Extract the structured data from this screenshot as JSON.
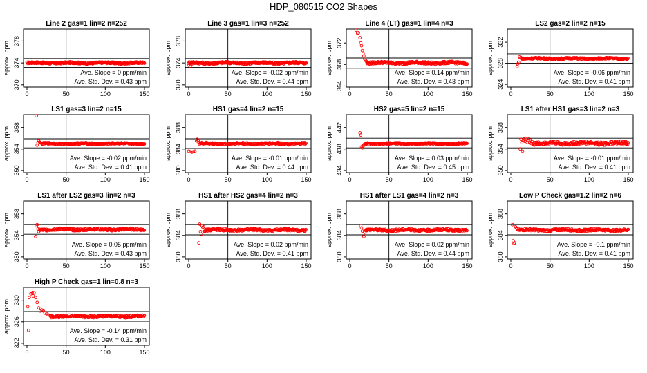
{
  "figure_title": "HDP_080515  CO2 Shapes",
  "chart_data": [
    {
      "type": "scatter",
      "title": "Line 2 gas=1 lin=2 n=252",
      "ylabel": "approx. ppm",
      "xlim": [
        0,
        150
      ],
      "xticks": [
        0,
        50,
        100,
        150
      ],
      "ylim": [
        369.6,
        380.2
      ],
      "yticks": [
        370,
        374,
        378
      ],
      "hlines": [
        373.2,
        374.8
      ],
      "vline": 50,
      "slope_label": "Ave. Slope = ",
      "slope": "0",
      "slope_unit": "ppm/min",
      "sd_label": "Ave. Std. Dev. = ",
      "sd": "0.43",
      "sd_unit": "ppm",
      "shape": {
        "base": 374,
        "start": 0,
        "noise": 0.15
      }
    },
    {
      "type": "scatter",
      "title": "Line 3 gas=1 lin=3 n=252",
      "ylabel": "approx. ppm",
      "xlim": [
        0,
        150
      ],
      "xticks": [
        0,
        50,
        100,
        150
      ],
      "ylim": [
        369.6,
        380.2
      ],
      "yticks": [
        370,
        374,
        378
      ],
      "hlines": [
        373.2,
        374.8
      ],
      "vline": 50,
      "slope_label": "Ave. Slope = ",
      "slope": "-0.02",
      "slope_unit": "ppm/min",
      "sd_label": "Ave. Std. Dev. = ",
      "sd": "0.44",
      "sd_unit": "ppm",
      "shape": {
        "base": 374,
        "start": 0,
        "noise": 0.18,
        "initial": [
          [
            0,
            373.6
          ],
          [
            2,
            373.4
          ],
          [
            4,
            373.8
          ],
          [
            6,
            374.2
          ]
        ]
      }
    },
    {
      "type": "scatter",
      "title": "Line 4 (LT) gas=1 lin=4 n=3",
      "ylabel": "approx. ppm",
      "xlim": [
        0,
        150
      ],
      "xticks": [
        0,
        50,
        100,
        150
      ],
      "ylim": [
        363.8,
        374.6
      ],
      "yticks": [
        364,
        368,
        372
      ],
      "hlines": [
        367.3,
        369.2
      ],
      "vline": 50,
      "slope_label": "Ave. Slope = ",
      "slope": "0.14",
      "slope_unit": "ppm/min",
      "sd_label": "Ave. Std. Dev. = ",
      "sd": "0.43",
      "sd_unit": "ppm",
      "shape": {
        "base": 368.3,
        "start": 22,
        "noise": 0.2,
        "initial": [
          [
            8,
            374.4
          ],
          [
            10,
            373.8
          ],
          [
            11,
            373.9
          ],
          [
            13,
            373.0
          ],
          [
            14,
            372.0
          ],
          [
            15,
            371.5
          ],
          [
            16,
            370.6
          ],
          [
            17,
            370.0
          ],
          [
            18,
            369.6
          ],
          [
            19,
            369.0
          ],
          [
            20,
            368.8
          ],
          [
            21,
            368.6
          ]
        ]
      }
    },
    {
      "type": "scatter",
      "title": "LS2 gas=2 lin=2 n=15",
      "ylabel": "approx. ppm",
      "xlim": [
        0,
        150
      ],
      "xticks": [
        0,
        50,
        100,
        150
      ],
      "ylim": [
        323.5,
        334.5
      ],
      "yticks": [
        324,
        328,
        332
      ],
      "hlines": [
        328.0,
        329.8
      ],
      "vline": 50,
      "slope_label": "Ave. Slope = ",
      "slope": "-0.06",
      "slope_unit": "ppm/min",
      "sd_label": "Ave. Std. Dev. = ",
      "sd": "0.41",
      "sd_unit": "ppm",
      "shape": {
        "base": 328.9,
        "start": 14,
        "noise": 0.15,
        "initial": [
          [
            8,
            327.4
          ],
          [
            9,
            327.9
          ],
          [
            10,
            328.2
          ],
          [
            11,
            329.2
          ],
          [
            12,
            329.0
          ],
          [
            13,
            329.1
          ]
        ]
      }
    },
    {
      "type": "scatter",
      "title": "LS1 gas=3 lin=2 n=15",
      "ylabel": "approx. ppm",
      "xlim": [
        0,
        150
      ],
      "xticks": [
        0,
        50,
        100,
        150
      ],
      "ylim": [
        349.6,
        360.4
      ],
      "yticks": [
        350,
        354,
        358
      ],
      "hlines": [
        354.2,
        355.9
      ],
      "vline": 50,
      "slope_label": "Ave. Slope = ",
      "slope": "-0.02",
      "slope_unit": "ppm/min",
      "sd_label": "Ave. Std. Dev. = ",
      "sd": "0.41",
      "sd_unit": "ppm",
      "shape": {
        "base": 355.0,
        "start": 18,
        "noise": 0.15,
        "initial": [
          [
            12,
            360.2
          ],
          [
            13,
            354.7
          ],
          [
            14,
            355.2
          ],
          [
            15,
            355.6
          ],
          [
            16,
            355.3
          ],
          [
            17,
            355.2
          ]
        ]
      }
    },
    {
      "type": "scatter",
      "title": "HS1 gas=4 lin=2 n=15",
      "ylabel": "approx. ppm",
      "xlim": [
        0,
        150
      ],
      "xticks": [
        0,
        50,
        100,
        150
      ],
      "ylim": [
        379.6,
        390.4
      ],
      "yticks": [
        380,
        384,
        388
      ],
      "hlines": [
        384.1,
        385.9
      ],
      "vline": 50,
      "slope_label": "Ave. Slope = ",
      "slope": "-0.01",
      "slope_unit": "ppm/min",
      "sd_label": "Ave. Std. Dev. = ",
      "sd": "0.44",
      "sd_unit": "ppm",
      "shape": {
        "base": 385.0,
        "start": 14,
        "noise": 0.18,
        "initial": [
          [
            0,
            383.6
          ],
          [
            2,
            383.5
          ],
          [
            4,
            383.4
          ],
          [
            6,
            383.5
          ],
          [
            8,
            383.6
          ],
          [
            10,
            385.5
          ],
          [
            11,
            385.8
          ],
          [
            12,
            385.6
          ],
          [
            13,
            385.2
          ]
        ]
      }
    },
    {
      "type": "scatter",
      "title": "HS2 gas=5 lin=2 n=15",
      "ylabel": "approx. ppm",
      "xlim": [
        0,
        150
      ],
      "xticks": [
        0,
        50,
        100,
        150
      ],
      "ylim": [
        433.6,
        444.4
      ],
      "yticks": [
        434,
        438,
        442
      ],
      "hlines": [
        438.2,
        440.0
      ],
      "vline": 50,
      "slope_label": "Ave. Slope = ",
      "slope": "0.03",
      "slope_unit": "ppm/min",
      "sd_label": "Ave. Std. Dev. = ",
      "sd": "0.45",
      "sd_unit": "ppm",
      "shape": {
        "base": 439.0,
        "start": 20,
        "noise": 0.15,
        "initial": [
          [
            13,
            441.0
          ],
          [
            14,
            440.6
          ],
          [
            15,
            438.4
          ],
          [
            16,
            438.2
          ],
          [
            17,
            438.5
          ],
          [
            18,
            438.8
          ],
          [
            19,
            438.9
          ]
        ]
      }
    },
    {
      "type": "scatter",
      "title": "LS1 after HS1 gas=3 lin=2 n=3",
      "ylabel": "approx. ppm",
      "xlim": [
        0,
        150
      ],
      "xticks": [
        0,
        50,
        100,
        150
      ],
      "ylim": [
        349.6,
        360.4
      ],
      "yticks": [
        350,
        354,
        358
      ],
      "hlines": [
        354.2,
        356.0
      ],
      "vline": 50,
      "slope_label": "Ave. Slope = ",
      "slope": "-0.01",
      "slope_unit": "ppm/min",
      "sd_label": "Ave. Std. Dev. = ",
      "sd": "0.41",
      "sd_unit": "ppm",
      "shape": {
        "base": 355.1,
        "start": 28,
        "noise": 0.3,
        "initial": [
          [
            12,
            354.0
          ],
          [
            13,
            355.8
          ],
          [
            14,
            355.2
          ],
          [
            15,
            353.6
          ],
          [
            16,
            355.6
          ],
          [
            17,
            355.9
          ],
          [
            18,
            355.4
          ],
          [
            19,
            356.0
          ],
          [
            20,
            355.8
          ],
          [
            21,
            355.2
          ],
          [
            22,
            355.6
          ],
          [
            23,
            355.9
          ],
          [
            24,
            355.3
          ],
          [
            25,
            355.7
          ],
          [
            26,
            355.0
          ],
          [
            27,
            355.4
          ]
        ]
      }
    },
    {
      "type": "scatter",
      "title": "LS1 after LS2 gas=3 lin=2 n=3",
      "ylabel": "approx. ppm",
      "xlim": [
        0,
        150
      ],
      "xticks": [
        0,
        50,
        100,
        150
      ],
      "ylim": [
        349.6,
        360.4
      ],
      "yticks": [
        350,
        354,
        358
      ],
      "hlines": [
        354.2,
        356.0
      ],
      "vline": 50,
      "slope_label": "Ave. Slope = ",
      "slope": "0.05",
      "slope_unit": "ppm/min",
      "sd_label": "Ave. Std. Dev. = ",
      "sd": "0.43",
      "sd_unit": "ppm",
      "shape": {
        "base": 355.1,
        "start": 16,
        "noise": 0.2,
        "initial": [
          [
            11,
            353.8
          ],
          [
            12,
            355.8
          ],
          [
            13,
            356.0
          ],
          [
            14,
            355.2
          ],
          [
            15,
            354.7
          ]
        ]
      }
    },
    {
      "type": "scatter",
      "title": "HS1 after HS2 gas=4 lin=2 n=3",
      "ylabel": "approx. ppm",
      "xlim": [
        0,
        150
      ],
      "xticks": [
        0,
        50,
        100,
        150
      ],
      "ylim": [
        379.6,
        390.4
      ],
      "yticks": [
        380,
        384,
        388
      ],
      "hlines": [
        384.1,
        386.0
      ],
      "vline": 50,
      "slope_label": "Ave. Slope = ",
      "slope": "0.02",
      "slope_unit": "ppm/min",
      "sd_label": "Ave. Std. Dev. = ",
      "sd": "0.41",
      "sd_unit": "ppm",
      "shape": {
        "base": 385.0,
        "start": 20,
        "noise": 0.2,
        "initial": [
          [
            13,
            382.6
          ],
          [
            14,
            386.1
          ],
          [
            15,
            384.7
          ],
          [
            16,
            384.2
          ],
          [
            17,
            385.8
          ],
          [
            18,
            385.5
          ],
          [
            19,
            385.6
          ]
        ]
      }
    },
    {
      "type": "scatter",
      "title": "HS1 after LS1 gas=4 lin=2 n=3",
      "ylabel": "approx. ppm",
      "xlim": [
        0,
        150
      ],
      "xticks": [
        0,
        50,
        100,
        150
      ],
      "ylim": [
        379.6,
        390.4
      ],
      "yticks": [
        380,
        384,
        388
      ],
      "hlines": [
        384.1,
        386.0
      ],
      "vline": 50,
      "slope_label": "Ave. Slope = ",
      "slope": "0.02",
      "slope_unit": "ppm/min",
      "sd_label": "Ave. Std. Dev. = ",
      "sd": "0.44",
      "sd_unit": "ppm",
      "shape": {
        "base": 385.0,
        "start": 20,
        "noise": 0.2,
        "initial": [
          [
            14,
            385.8
          ],
          [
            15,
            385.4
          ],
          [
            16,
            384.8
          ],
          [
            17,
            384.2
          ],
          [
            18,
            383.8
          ],
          [
            19,
            384.6
          ]
        ]
      }
    },
    {
      "type": "scatter",
      "title": "Low P Check gas=1.2 lin=2 n=6",
      "ylabel": "approx. ppm",
      "xlim": [
        0,
        150
      ],
      "xticks": [
        0,
        50,
        100,
        150
      ],
      "ylim": [
        379.6,
        390.4
      ],
      "yticks": [
        380,
        384,
        388
      ],
      "hlines": [
        384.1,
        386.0
      ],
      "vline": 50,
      "slope_label": "Ave. Slope = ",
      "slope": "-0.1",
      "slope_unit": "ppm/min",
      "sd_label": "Ave. Std. Dev. = ",
      "sd": "0.41",
      "sd_unit": "ppm",
      "shape": {
        "base": 385.0,
        "start": 10,
        "noise": 0.2,
        "initial": [
          [
            2,
            386.0
          ],
          [
            3,
            383.0
          ],
          [
            4,
            382.5
          ],
          [
            5,
            382.6
          ],
          [
            6,
            385.6
          ],
          [
            7,
            385.4
          ],
          [
            8,
            385.2
          ],
          [
            9,
            385.0
          ]
        ]
      }
    },
    {
      "type": "scatter",
      "title": "High P Check gas=1 lin=0.8 n=3",
      "ylabel": "approx. ppm",
      "xlim": [
        0,
        150
      ],
      "xticks": [
        0,
        50,
        100,
        150
      ],
      "ylim": [
        321.6,
        332.4
      ],
      "yticks": [
        322,
        326,
        330
      ],
      "hlines": [
        326.1,
        327.9
      ],
      "vline": 50,
      "slope_label": "Ave. Slope = ",
      "slope": "-0.14",
      "slope_unit": "ppm/min",
      "sd_label": "Ave. Std. Dev. = ",
      "sd": "0.31",
      "sd_unit": "ppm",
      "shape": {
        "base": 327.0,
        "start": 30,
        "noise": 0.2,
        "initial": [
          [
            1,
            328.8
          ],
          [
            2,
            324.4
          ],
          [
            3,
            330.5
          ],
          [
            5,
            331.2
          ],
          [
            7,
            331.3
          ],
          [
            8,
            330.8
          ],
          [
            9,
            331.4
          ],
          [
            11,
            330.5
          ],
          [
            13,
            329.6
          ],
          [
            15,
            328.6
          ],
          [
            17,
            328.0
          ],
          [
            19,
            328.2
          ],
          [
            21,
            328.0
          ],
          [
            23,
            327.6
          ],
          [
            25,
            327.5
          ],
          [
            27,
            327.3
          ],
          [
            29,
            327.2
          ]
        ]
      }
    }
  ]
}
